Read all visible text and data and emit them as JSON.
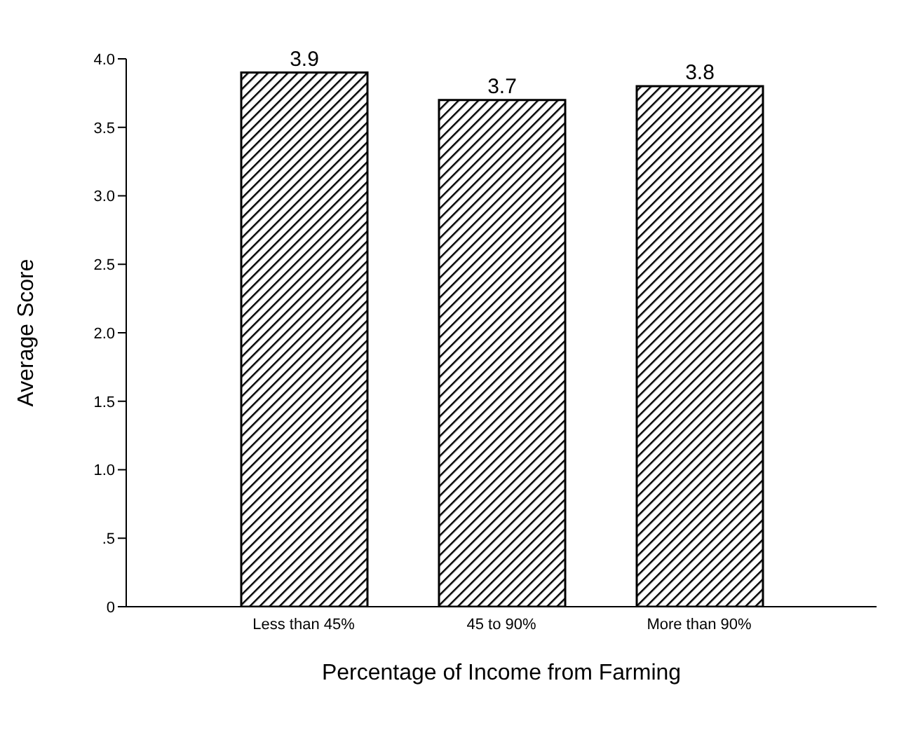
{
  "chart_data": {
    "type": "bar",
    "xlabel": "Percentage of Income from Farming",
    "ylabel": "Average Score",
    "categories": [
      "Less than 45%",
      "45 to 90%",
      "More than 90%"
    ],
    "values": [
      3.9,
      3.7,
      3.8
    ],
    "color": "#000000",
    "data_labels": true,
    "grid": false,
    "ylim": [
      0,
      4
    ],
    "yticks": [
      {
        "value": 0,
        "label": "0"
      },
      {
        "value": 0.5,
        "label": ".5"
      },
      {
        "value": 1,
        "label": "1.0"
      },
      {
        "value": 1.5,
        "label": "1.5"
      },
      {
        "value": 2,
        "label": "2.0"
      },
      {
        "value": 2.5,
        "label": "2.5"
      },
      {
        "value": 3,
        "label": "3.0"
      },
      {
        "value": 3.5,
        "label": "3.5"
      },
      {
        "value": 4,
        "label": "4.0"
      }
    ]
  }
}
